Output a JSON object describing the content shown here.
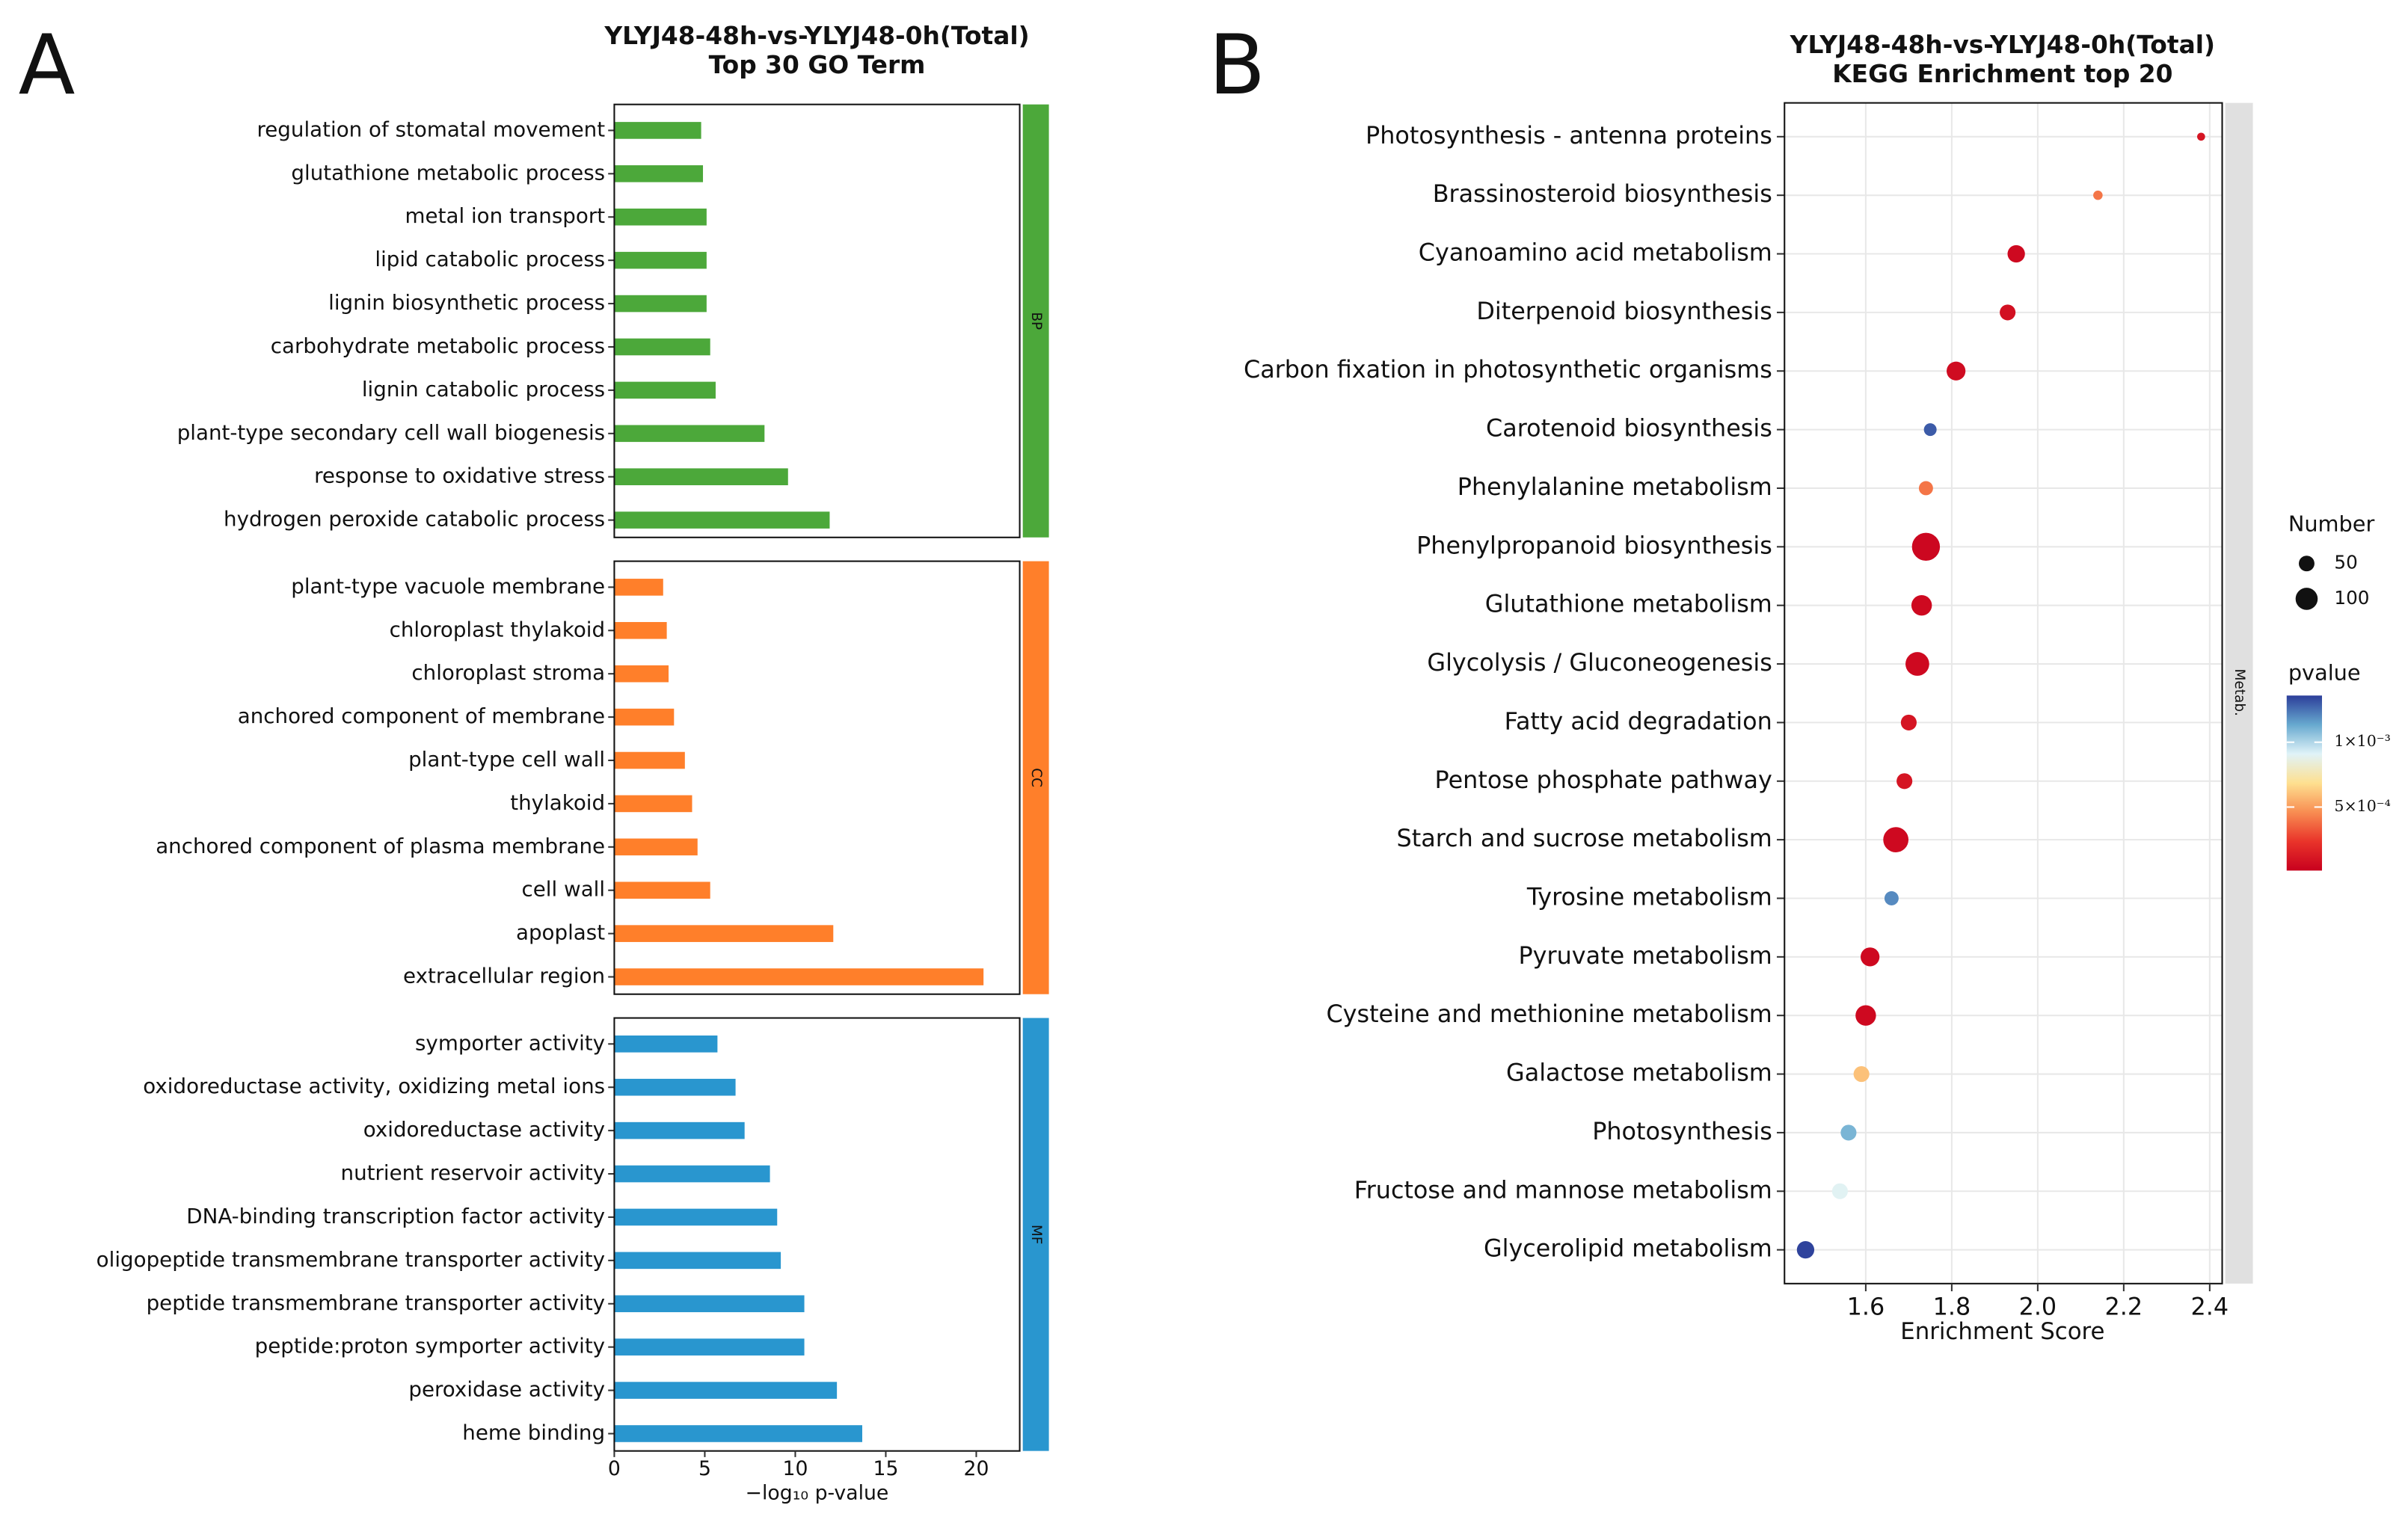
{
  "chart_data": [
    {
      "type": "bar",
      "orientation": "horizontal",
      "panel_label": "A",
      "title": [
        "YLYJ48-48h-vs-YLYJ48-0h(Total)",
        "Top 30 GO Term"
      ],
      "x_label": "−log₁₀ p-value",
      "xlim": [
        0,
        22.4
      ],
      "xticks": [
        0,
        5,
        10,
        15,
        20
      ],
      "facets": [
        {
          "name": "BP",
          "color": "#4ca83a",
          "categories": [
            "regulation of stomatal movement",
            "glutathione metabolic process",
            "metal ion transport",
            "lipid catabolic process",
            "lignin biosynthetic process",
            "carbohydrate metabolic process",
            "lignin catabolic process",
            "plant-type secondary cell wall biogenesis",
            "response to oxidative stress",
            "hydrogen peroxide catabolic process"
          ],
          "values": [
            4.8,
            4.9,
            5.1,
            5.1,
            5.1,
            5.3,
            5.6,
            8.3,
            9.6,
            11.9
          ]
        },
        {
          "name": "CC",
          "color": "#ff7f2a",
          "categories": [
            "plant-type vacuole membrane",
            "chloroplast thylakoid",
            "chloroplast stroma",
            "anchored component of membrane",
            "plant-type cell wall",
            "thylakoid",
            "anchored component of plasma membrane",
            "cell wall",
            "apoplast",
            "extracellular region"
          ],
          "values": [
            2.7,
            2.9,
            3.0,
            3.3,
            3.9,
            4.3,
            4.6,
            5.3,
            12.1,
            20.4
          ]
        },
        {
          "name": "MF",
          "color": "#2996cf",
          "categories": [
            "symporter activity",
            "oxidoreductase activity, oxidizing metal ions",
            "oxidoreductase activity",
            "nutrient reservoir activity",
            "DNA-binding transcription factor activity",
            "oligopeptide transmembrane transporter activity",
            "peptide transmembrane transporter activity",
            "peptide:proton symporter activity",
            "peroxidase activity",
            "heme binding"
          ],
          "values": [
            5.7,
            6.7,
            7.2,
            8.6,
            9.0,
            9.2,
            10.5,
            10.5,
            12.3,
            13.7
          ]
        }
      ]
    },
    {
      "type": "scatter",
      "panel_label": "B",
      "title": [
        "YLYJ48-48h-vs-YLYJ48-0h(Total)",
        "KEGG Enrichment top 20"
      ],
      "x_label": "Enrichment Score",
      "facet": "Metab.",
      "grid": true,
      "xlim": [
        1.411,
        2.429
      ],
      "xticks": [
        1.6,
        1.8,
        {
          "value": 2,
          "label": "2.0"
        },
        2.2,
        2.4
      ],
      "categories": [
        "Photosynthesis - antenna proteins",
        "Brassinosteroid biosynthesis",
        "Cyanoamino acid metabolism",
        "Diterpenoid biosynthesis",
        "Carbon fixation in photosynthetic organisms",
        "Carotenoid biosynthesis",
        "Phenylalanine metabolism",
        "Phenylpropanoid biosynthesis",
        "Glutathione metabolism",
        "Glycolysis / Gluconeogenesis",
        "Fatty acid degradation",
        "Pentose phosphate pathway",
        "Starch and sucrose metabolism",
        "Tyrosine metabolism",
        "Pyruvate metabolism",
        "Cysteine and methionine metabolism",
        "Galactose metabolism",
        "Photosynthesis",
        "Fructose and mannose metabolism",
        "Glycerolipid metabolism"
      ],
      "x": [
        2.38,
        2.14,
        1.95,
        1.93,
        1.81,
        1.75,
        1.74,
        1.74,
        1.73,
        1.72,
        1.7,
        1.69,
        1.67,
        1.66,
        1.61,
        1.6,
        1.59,
        1.56,
        1.54,
        1.46
      ],
      "size": [
        13,
        18,
        62,
        51,
        73,
        33,
        41,
        160,
        86,
        115,
        51,
        51,
        130,
        41,
        73,
        86,
        51,
        51,
        51,
        62
      ],
      "pvalue": [
        0.0001,
        0.0004,
        5e-05,
        8e-05,
        6e-05,
        0.0013,
        0.0004,
        4e-05,
        5e-05,
        5e-05,
        0.0001,
        0.0001,
        5e-05,
        0.0012,
        5e-05,
        5e-05,
        0.0006,
        0.0011,
        0.0009,
        0.00135
      ],
      "size_legend": {
        "title": "Number",
        "values": [
          50,
          100
        ]
      },
      "color_legend": {
        "title": "pvalue",
        "clim": [
          1e-05,
          0.00136
        ],
        "ticks": [
          {
            "value": 0.001,
            "label": "1×10⁻³"
          },
          {
            "value": 0.0005,
            "label": "5×10⁻⁴"
          }
        ],
        "colors": [
          "#c8001e",
          "#e9342a",
          "#f88d52",
          "#fee090",
          "#e0f3f8",
          "#67a9cf",
          "#2c3e9a"
        ]
      }
    }
  ]
}
